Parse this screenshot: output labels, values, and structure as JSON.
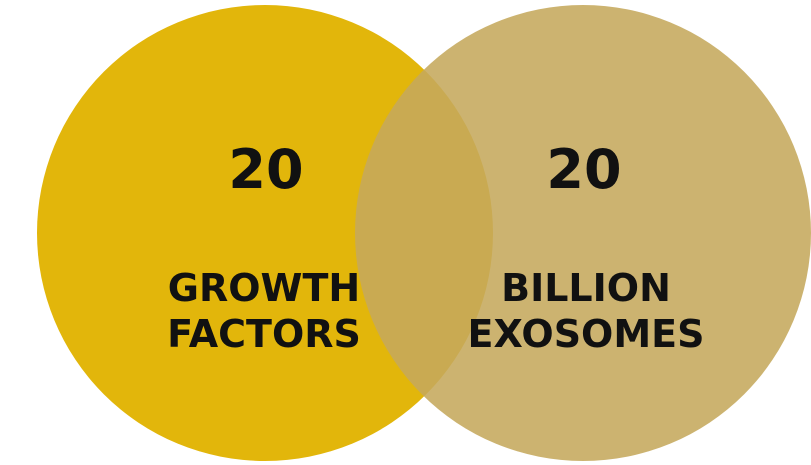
{
  "colors": {
    "left_circle": "#e2b60b",
    "right_circle": "#c5a85c",
    "text": "#111111",
    "background": "#ffffff"
  },
  "left": {
    "number": "20",
    "label_line1": "GROWTH",
    "label_line2": "FACTORS"
  },
  "right": {
    "number": "20",
    "label_line1": "BILLION",
    "label_line2": "EXOSOMES"
  }
}
